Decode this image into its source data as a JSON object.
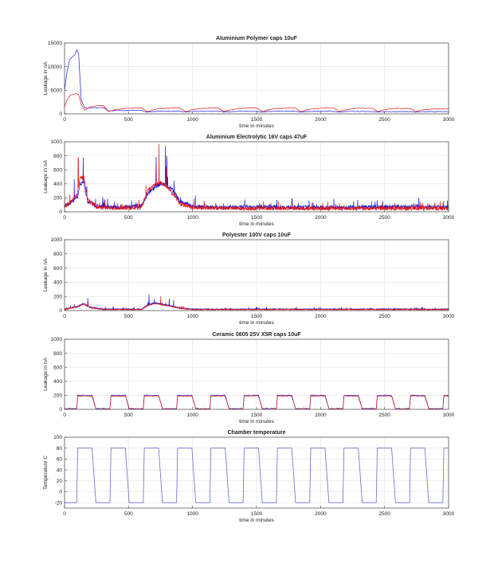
{
  "colors": {
    "series_a": "#1a1ad8",
    "series_b": "#e01818",
    "grid": "#e3e3e3",
    "axis": "#444444"
  },
  "chart_data": [
    {
      "type": "line",
      "title": "Aluminium Polymer caps 10uF",
      "xlabel": "time in minutes",
      "ylabel": "Leakage in nA",
      "xlim": [
        0,
        3000
      ],
      "ylim": [
        0,
        15000
      ],
      "xticks": [
        "0",
        "500",
        "1000",
        "1500",
        "2000",
        "2500",
        "3000"
      ],
      "yticks": [
        "0",
        "5000",
        "10000",
        "15000"
      ],
      "grid": true,
      "series": [
        {
          "color": "#1a1ad8",
          "x": [
            0,
            20,
            40,
            60,
            80,
            95,
            110,
            130,
            145,
            160,
            200,
            250,
            300,
            345,
            400,
            450,
            500,
            550,
            600,
            645,
            700,
            750,
            800,
            850,
            900,
            945,
            1000,
            1050,
            1100,
            1150,
            1200,
            1245,
            1300,
            1350,
            1400,
            1450,
            1500,
            1545,
            1600,
            1650,
            1700,
            1750,
            1800,
            1845,
            1900,
            1950,
            2000,
            2050,
            2100,
            2145,
            2200,
            2250,
            2300,
            2350,
            2400,
            2445,
            2500,
            2550,
            2600,
            2650,
            2700,
            2745,
            2800,
            2850,
            2900,
            2950,
            3000
          ],
          "y": [
            5000,
            9000,
            11500,
            12000,
            12500,
            13500,
            12800,
            3000,
            2000,
            1200,
            1250,
            1300,
            1350,
            600,
            700,
            700,
            750,
            750,
            750,
            400,
            500,
            550,
            550,
            550,
            550,
            380,
            500,
            550,
            550,
            550,
            550,
            400,
            500,
            550,
            550,
            550,
            550,
            380,
            500,
            550,
            550,
            550,
            550,
            380,
            500,
            550,
            550,
            550,
            550,
            380,
            500,
            520,
            520,
            520,
            520,
            380,
            480,
            500,
            500,
            500,
            500,
            350,
            450,
            480,
            480,
            480,
            480
          ]
        },
        {
          "color": "#e01818",
          "x": [
            0,
            20,
            40,
            60,
            80,
            95,
            110,
            130,
            145,
            160,
            200,
            250,
            300,
            345,
            400,
            450,
            500,
            550,
            600,
            645,
            700,
            750,
            800,
            850,
            900,
            945,
            1000,
            1050,
            1100,
            1150,
            1200,
            1245,
            1300,
            1350,
            1400,
            1450,
            1500,
            1545,
            1600,
            1650,
            1700,
            1750,
            1800,
            1845,
            1900,
            1950,
            2000,
            2050,
            2100,
            2145,
            2200,
            2250,
            2300,
            2350,
            2400,
            2445,
            2500,
            2550,
            2600,
            2650,
            2700,
            2745,
            2800,
            2850,
            2900,
            2950,
            3000
          ],
          "y": [
            1500,
            3000,
            3800,
            4100,
            4200,
            4300,
            4100,
            2000,
            1300,
            800,
            1500,
            1700,
            1800,
            500,
            900,
            1100,
            1200,
            1250,
            1300,
            500,
            900,
            1100,
            1200,
            1250,
            1250,
            500,
            900,
            1100,
            1200,
            1250,
            1250,
            500,
            900,
            1100,
            1200,
            1250,
            1250,
            500,
            900,
            1100,
            1200,
            1250,
            1250,
            500,
            900,
            1100,
            1200,
            1250,
            1250,
            500,
            900,
            1100,
            1200,
            1200,
            1200,
            500,
            900,
            1100,
            1150,
            1150,
            1150,
            500,
            900,
            1000,
            1050,
            1050,
            1050
          ]
        }
      ]
    },
    {
      "type": "line",
      "title": "Aluminium Electrolytic 16V caps 47uF",
      "xlabel": "time in minutes",
      "ylabel": "Leakage in nA",
      "xlim": [
        0,
        3000
      ],
      "ylim": [
        0,
        1000
      ],
      "xticks": [
        "0",
        "500",
        "1000",
        "1500",
        "2000",
        "2500",
        "3000"
      ],
      "yticks": [
        "0",
        "200",
        "400",
        "600",
        "800",
        "1000"
      ],
      "grid": true,
      "series": [
        {
          "color": "#1a1ad8",
          "x": [
            0,
            100,
            120,
            150,
            180,
            250,
            400,
            600,
            650,
            700,
            750,
            800,
            850,
            900,
            1000,
            1200,
            1500,
            2000,
            2500,
            3000
          ],
          "y": [
            80,
            200,
            400,
            420,
            150,
            80,
            60,
            80,
            250,
            350,
            400,
            380,
            300,
            150,
            80,
            60,
            70,
            60,
            70,
            70
          ]
        },
        {
          "color": "#e01818",
          "x": [
            0,
            100,
            120,
            150,
            180,
            250,
            400,
            600,
            650,
            700,
            750,
            800,
            850,
            900,
            1000,
            1200,
            1500,
            2000,
            2500,
            3000
          ],
          "y": [
            60,
            250,
            480,
            500,
            180,
            70,
            50,
            60,
            300,
            380,
            420,
            350,
            250,
            120,
            60,
            50,
            50,
            50,
            50,
            50
          ]
        }
      ]
    },
    {
      "type": "line",
      "title": "Polyester 100V caps 10uF",
      "xlabel": "time in minutes",
      "ylabel": "Leakage in nA",
      "xlim": [
        0,
        3000
      ],
      "ylim": [
        0,
        1000
      ],
      "xticks": [
        "0",
        "500",
        "1000",
        "1500",
        "2000",
        "2500",
        "3000"
      ],
      "yticks": [
        "0",
        "200",
        "400",
        "600",
        "800",
        "1000"
      ],
      "grid": true,
      "series": [
        {
          "color": "#1a1ad8",
          "x": [
            0,
            100,
            150,
            200,
            300,
            600,
            650,
            700,
            800,
            900,
            1000,
            1500,
            2000,
            2500,
            3000
          ],
          "y": [
            20,
            60,
            100,
            50,
            20,
            20,
            80,
            110,
            80,
            40,
            20,
            20,
            20,
            20,
            20
          ]
        },
        {
          "color": "#e01818",
          "x": [
            0,
            100,
            150,
            200,
            300,
            600,
            650,
            700,
            800,
            900,
            1000,
            1500,
            2000,
            2500,
            3000
          ],
          "y": [
            15,
            50,
            90,
            40,
            15,
            15,
            70,
            100,
            70,
            30,
            15,
            15,
            15,
            15,
            15
          ]
        }
      ]
    },
    {
      "type": "line",
      "title": "Ceramic 0805 25V X5R caps 10uF",
      "xlabel": "time in minutes",
      "ylabel": "Leakage in nA",
      "xlim": [
        0,
        3000
      ],
      "ylim": [
        0,
        1000
      ],
      "xticks": [
        "0",
        "500",
        "1000",
        "1500",
        "2000",
        "2500",
        "3000"
      ],
      "yticks": [
        "0",
        "200",
        "400",
        "600",
        "800",
        "1000"
      ],
      "grid": true,
      "series": [
        {
          "color": "#1a1ad8",
          "period": 260,
          "offset": 95,
          "low": 10,
          "high": 200
        },
        {
          "color": "#e01818",
          "period": 260,
          "offset": 95,
          "low": 5,
          "high": 190
        }
      ]
    },
    {
      "type": "line",
      "title": "Chamber temperature",
      "xlabel": "time in minutes",
      "ylabel": "Temperature C",
      "xlim": [
        0,
        3000
      ],
      "ylim": [
        -30,
        100
      ],
      "xticks": [
        "0",
        "500",
        "1000",
        "1500",
        "2000",
        "2500",
        "3000"
      ],
      "yticks": [
        "-20",
        "0",
        "20",
        "40",
        "60",
        "80",
        "100"
      ],
      "grid": true,
      "series": [
        {
          "color": "#6a6ad0",
          "period": 260,
          "offset": 95,
          "low": -20,
          "high": 80
        }
      ]
    }
  ]
}
